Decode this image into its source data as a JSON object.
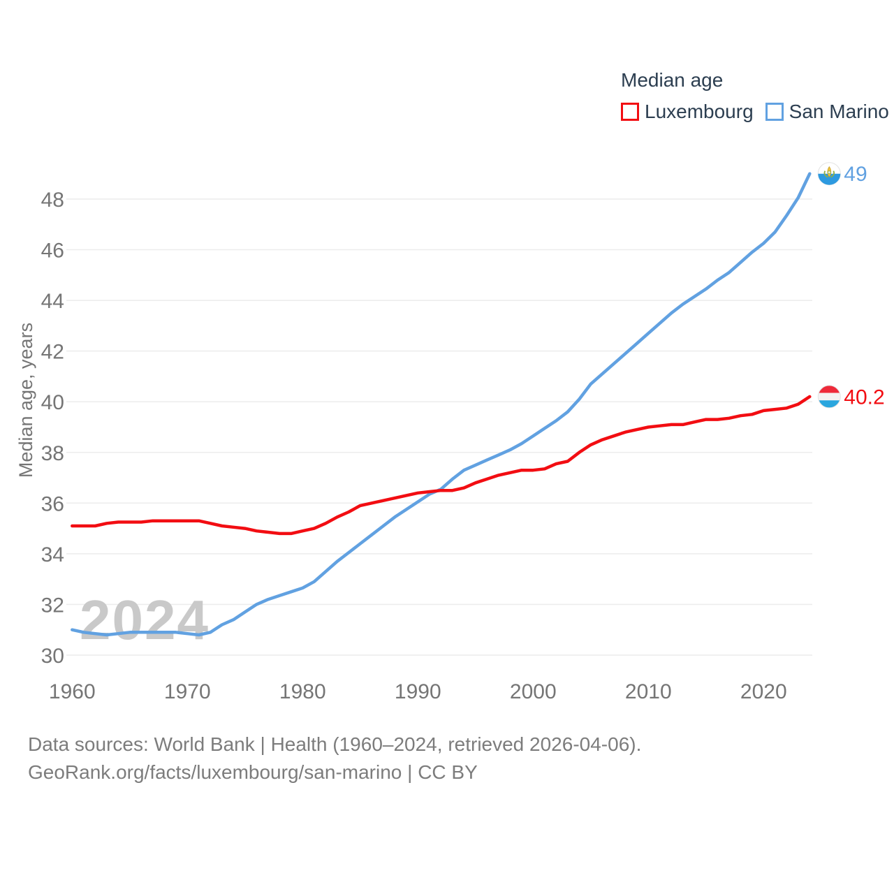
{
  "legend": {
    "title": "Median age",
    "items": [
      {
        "label": "Luxembourg",
        "color": "#f20d12"
      },
      {
        "label": "San Marino",
        "color": "#61a1e1"
      }
    ]
  },
  "watermark": "2024",
  "y_axis": {
    "title": "Median age, years",
    "ticks": [
      30,
      32,
      34,
      36,
      38,
      40,
      42,
      44,
      46,
      48
    ],
    "text_color": "#757575"
  },
  "x_axis": {
    "ticks": [
      1960,
      1970,
      1980,
      1990,
      2000,
      2010,
      2020
    ],
    "text_color": "#757575"
  },
  "footer": {
    "line1": "Data sources: World Bank | Health (1960–2024, retrieved 2026-04-06).",
    "line2": "GeoRank.org/facts/luxembourg/san-marino | CC BY"
  },
  "chart_data": {
    "type": "line",
    "title": "Median age",
    "xlabel": "",
    "ylabel": "Median age, years",
    "ylim": [
      30,
      49.6
    ],
    "xlim": [
      1960,
      2024
    ],
    "grid": "horizontal",
    "legend_position": "top-right",
    "x": [
      1960,
      1961,
      1962,
      1963,
      1964,
      1965,
      1966,
      1967,
      1968,
      1969,
      1970,
      1971,
      1972,
      1973,
      1974,
      1975,
      1976,
      1977,
      1978,
      1979,
      1980,
      1981,
      1982,
      1983,
      1984,
      1985,
      1986,
      1987,
      1988,
      1989,
      1990,
      1991,
      1992,
      1993,
      1994,
      1995,
      1996,
      1997,
      1998,
      1999,
      2000,
      2001,
      2002,
      2003,
      2004,
      2005,
      2006,
      2007,
      2008,
      2009,
      2010,
      2011,
      2012,
      2013,
      2014,
      2015,
      2016,
      2017,
      2018,
      2019,
      2020,
      2021,
      2022,
      2023,
      2024
    ],
    "series": [
      {
        "name": "Luxembourg",
        "color": "#f20d12",
        "end_label": "40.2",
        "values": [
          35.1,
          35.1,
          35.1,
          35.2,
          35.25,
          35.25,
          35.25,
          35.3,
          35.3,
          35.3,
          35.3,
          35.3,
          35.2,
          35.1,
          35.05,
          35.0,
          34.9,
          34.85,
          34.8,
          34.8,
          34.9,
          35.0,
          35.2,
          35.45,
          35.65,
          35.9,
          36.0,
          36.1,
          36.2,
          36.3,
          36.4,
          36.45,
          36.5,
          36.5,
          36.6,
          36.8,
          36.95,
          37.1,
          37.2,
          37.3,
          37.3,
          37.35,
          37.55,
          37.65,
          38.0,
          38.3,
          38.5,
          38.65,
          38.8,
          38.9,
          39.0,
          39.05,
          39.1,
          39.1,
          39.2,
          39.3,
          39.3,
          39.35,
          39.45,
          39.5,
          39.65,
          39.7,
          39.75,
          39.9,
          40.2
        ]
      },
      {
        "name": "San Marino",
        "color": "#61a1e1",
        "end_label": "49",
        "values": [
          31.0,
          30.9,
          30.85,
          30.8,
          30.85,
          30.9,
          30.9,
          30.9,
          30.9,
          30.9,
          30.85,
          30.8,
          30.9,
          31.2,
          31.4,
          31.7,
          32.0,
          32.2,
          32.35,
          32.5,
          32.65,
          32.9,
          33.3,
          33.7,
          34.05,
          34.4,
          34.75,
          35.1,
          35.45,
          35.75,
          36.05,
          36.35,
          36.55,
          36.95,
          37.3,
          37.5,
          37.7,
          37.9,
          38.1,
          38.35,
          38.65,
          38.95,
          39.25,
          39.6,
          40.1,
          40.7,
          41.1,
          41.5,
          41.9,
          42.3,
          42.7,
          43.1,
          43.5,
          43.85,
          44.15,
          44.45,
          44.8,
          45.1,
          45.5,
          45.9,
          46.25,
          46.7,
          47.35,
          48.05,
          49.0
        ]
      }
    ]
  }
}
